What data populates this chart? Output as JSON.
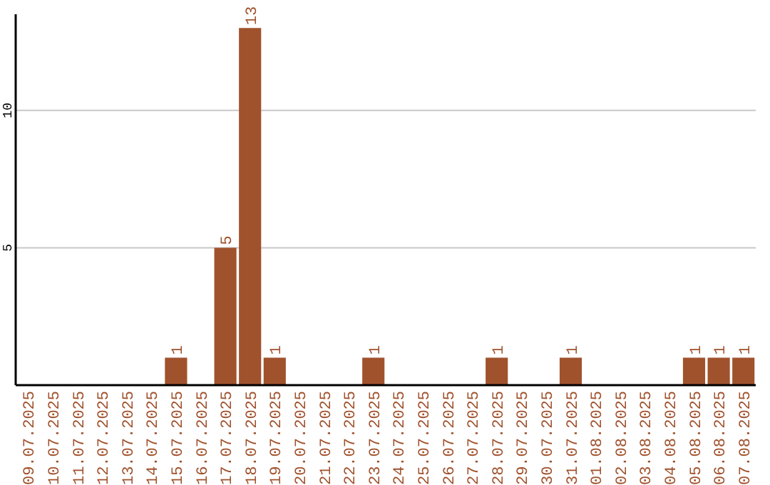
{
  "chart_data": {
    "type": "bar",
    "categories": [
      "09.07.2025",
      "10.07.2025",
      "11.07.2025",
      "12.07.2025",
      "13.07.2025",
      "14.07.2025",
      "15.07.2025",
      "16.07.2025",
      "17.07.2025",
      "18.07.2025",
      "19.07.2025",
      "20.07.2025",
      "21.07.2025",
      "22.07.2025",
      "23.07.2025",
      "24.07.2025",
      "25.07.2025",
      "26.07.2025",
      "27.07.2025",
      "28.07.2025",
      "29.07.2025",
      "30.07.2025",
      "31.07.2025",
      "01.08.2025",
      "02.08.2025",
      "03.08.2025",
      "04.08.2025",
      "05.08.2025",
      "06.08.2025",
      "07.08.2025"
    ],
    "values": [
      0,
      0,
      0,
      0,
      0,
      0,
      1,
      0,
      5,
      13,
      1,
      0,
      0,
      0,
      1,
      0,
      0,
      0,
      0,
      1,
      0,
      0,
      1,
      0,
      0,
      0,
      0,
      1,
      1,
      1
    ],
    "value_labels": [
      null,
      null,
      null,
      null,
      null,
      null,
      "1",
      null,
      "5",
      "13",
      "1",
      null,
      null,
      null,
      "1",
      null,
      null,
      null,
      null,
      "1",
      null,
      null,
      "1",
      null,
      null,
      null,
      null,
      "1",
      "1",
      "1"
    ],
    "color": "#a0522d",
    "ylim": [
      0,
      13.5
    ],
    "yticks": [
      5,
      10
    ],
    "grid": "y"
  }
}
